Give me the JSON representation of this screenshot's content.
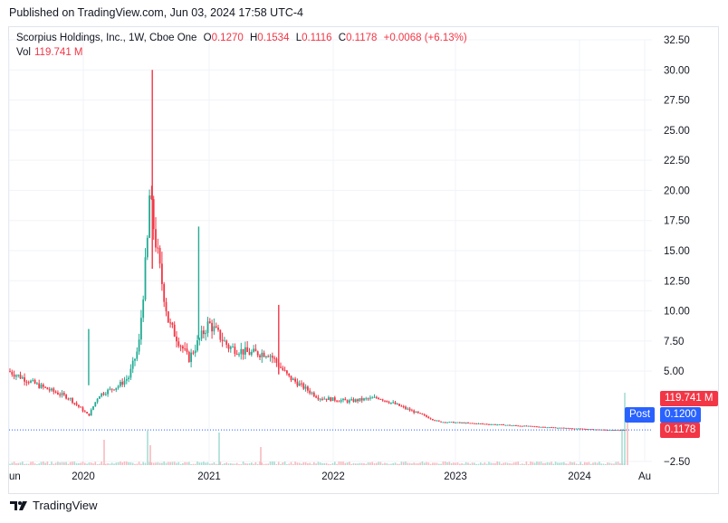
{
  "header": {
    "published": "Published on TradingView.com, Jun 03, 2024 17:58 UTC-4"
  },
  "legend": {
    "title": "Scorpius Holdings, Inc., 1W, Cboe One",
    "o_label": "O",
    "o_value": "0.1270",
    "h_label": "H",
    "h_value": "0.1534",
    "l_label": "L",
    "l_value": "0.1116",
    "c_label": "C",
    "c_value": "0.1178",
    "change": "+0.0068 (+6.13%)",
    "vol_label": "Vol",
    "vol_value": "119.741 M"
  },
  "tags": {
    "volume": "119.741 M",
    "post_label": "Post",
    "post_price": "0.1200",
    "last_price": "0.1178"
  },
  "brand": {
    "name": "TradingView"
  },
  "colors": {
    "up": "#22ab94",
    "down": "#f23645",
    "post": "#2962ff",
    "grid": "#f0f3fa"
  },
  "chart_data": {
    "type": "candlestick",
    "title": "Scorpius Holdings, Inc., 1W, Cboe One",
    "y_ticks": [
      "32.50",
      "30.00",
      "27.50",
      "25.00",
      "22.50",
      "20.00",
      "17.50",
      "15.00",
      "12.50",
      "10.00",
      "7.50",
      "5.00",
      "−2.50"
    ],
    "y_range": [
      -2.5,
      32.5
    ],
    "x_ticks": [
      "un",
      "2020",
      "2021",
      "2022",
      "2023",
      "2024",
      "Au"
    ],
    "series_close_approx": [
      {
        "date": "2019-06",
        "close": 5.0
      },
      {
        "date": "2019-09",
        "close": 3.8
      },
      {
        "date": "2019-12",
        "close": 2.8
      },
      {
        "date": "2020-02",
        "close": 1.3
      },
      {
        "date": "2020-03",
        "close": 3.0
      },
      {
        "date": "2020-05",
        "close": 3.8
      },
      {
        "date": "2020-06",
        "close": 4.5
      },
      {
        "date": "2020-07",
        "close": 7.0
      },
      {
        "date": "2020-08",
        "close": 17.0
      },
      {
        "date": "2020-08",
        "close": 20.0
      },
      {
        "date": "2020-09",
        "close": 14.0
      },
      {
        "date": "2020-10",
        "close": 9.0
      },
      {
        "date": "2020-12",
        "close": 6.0
      },
      {
        "date": "2021-02",
        "close": 9.0
      },
      {
        "date": "2021-04",
        "close": 7.0
      },
      {
        "date": "2021-06",
        "close": 6.5
      },
      {
        "date": "2021-08",
        "close": 6.5
      },
      {
        "date": "2021-10",
        "close": 4.5
      },
      {
        "date": "2022-01",
        "close": 2.8
      },
      {
        "date": "2022-04",
        "close": 2.5
      },
      {
        "date": "2022-07",
        "close": 2.8
      },
      {
        "date": "2022-10",
        "close": 1.8
      },
      {
        "date": "2023-01",
        "close": 0.8
      },
      {
        "date": "2023-06",
        "close": 0.6
      },
      {
        "date": "2024-01",
        "close": 0.3
      },
      {
        "date": "2024-06",
        "close": 0.1178
      }
    ],
    "spikes_high": [
      {
        "date": "2020-08",
        "high": 30.0
      },
      {
        "date": "2021-01",
        "high": 17.0
      },
      {
        "date": "2021-09",
        "high": 10.5
      },
      {
        "date": "2020-02",
        "high": 8.5
      }
    ],
    "last": {
      "open": 0.127,
      "high": 0.1534,
      "low": 0.1116,
      "close": 0.1178,
      "volume": "119.741 M"
    }
  }
}
